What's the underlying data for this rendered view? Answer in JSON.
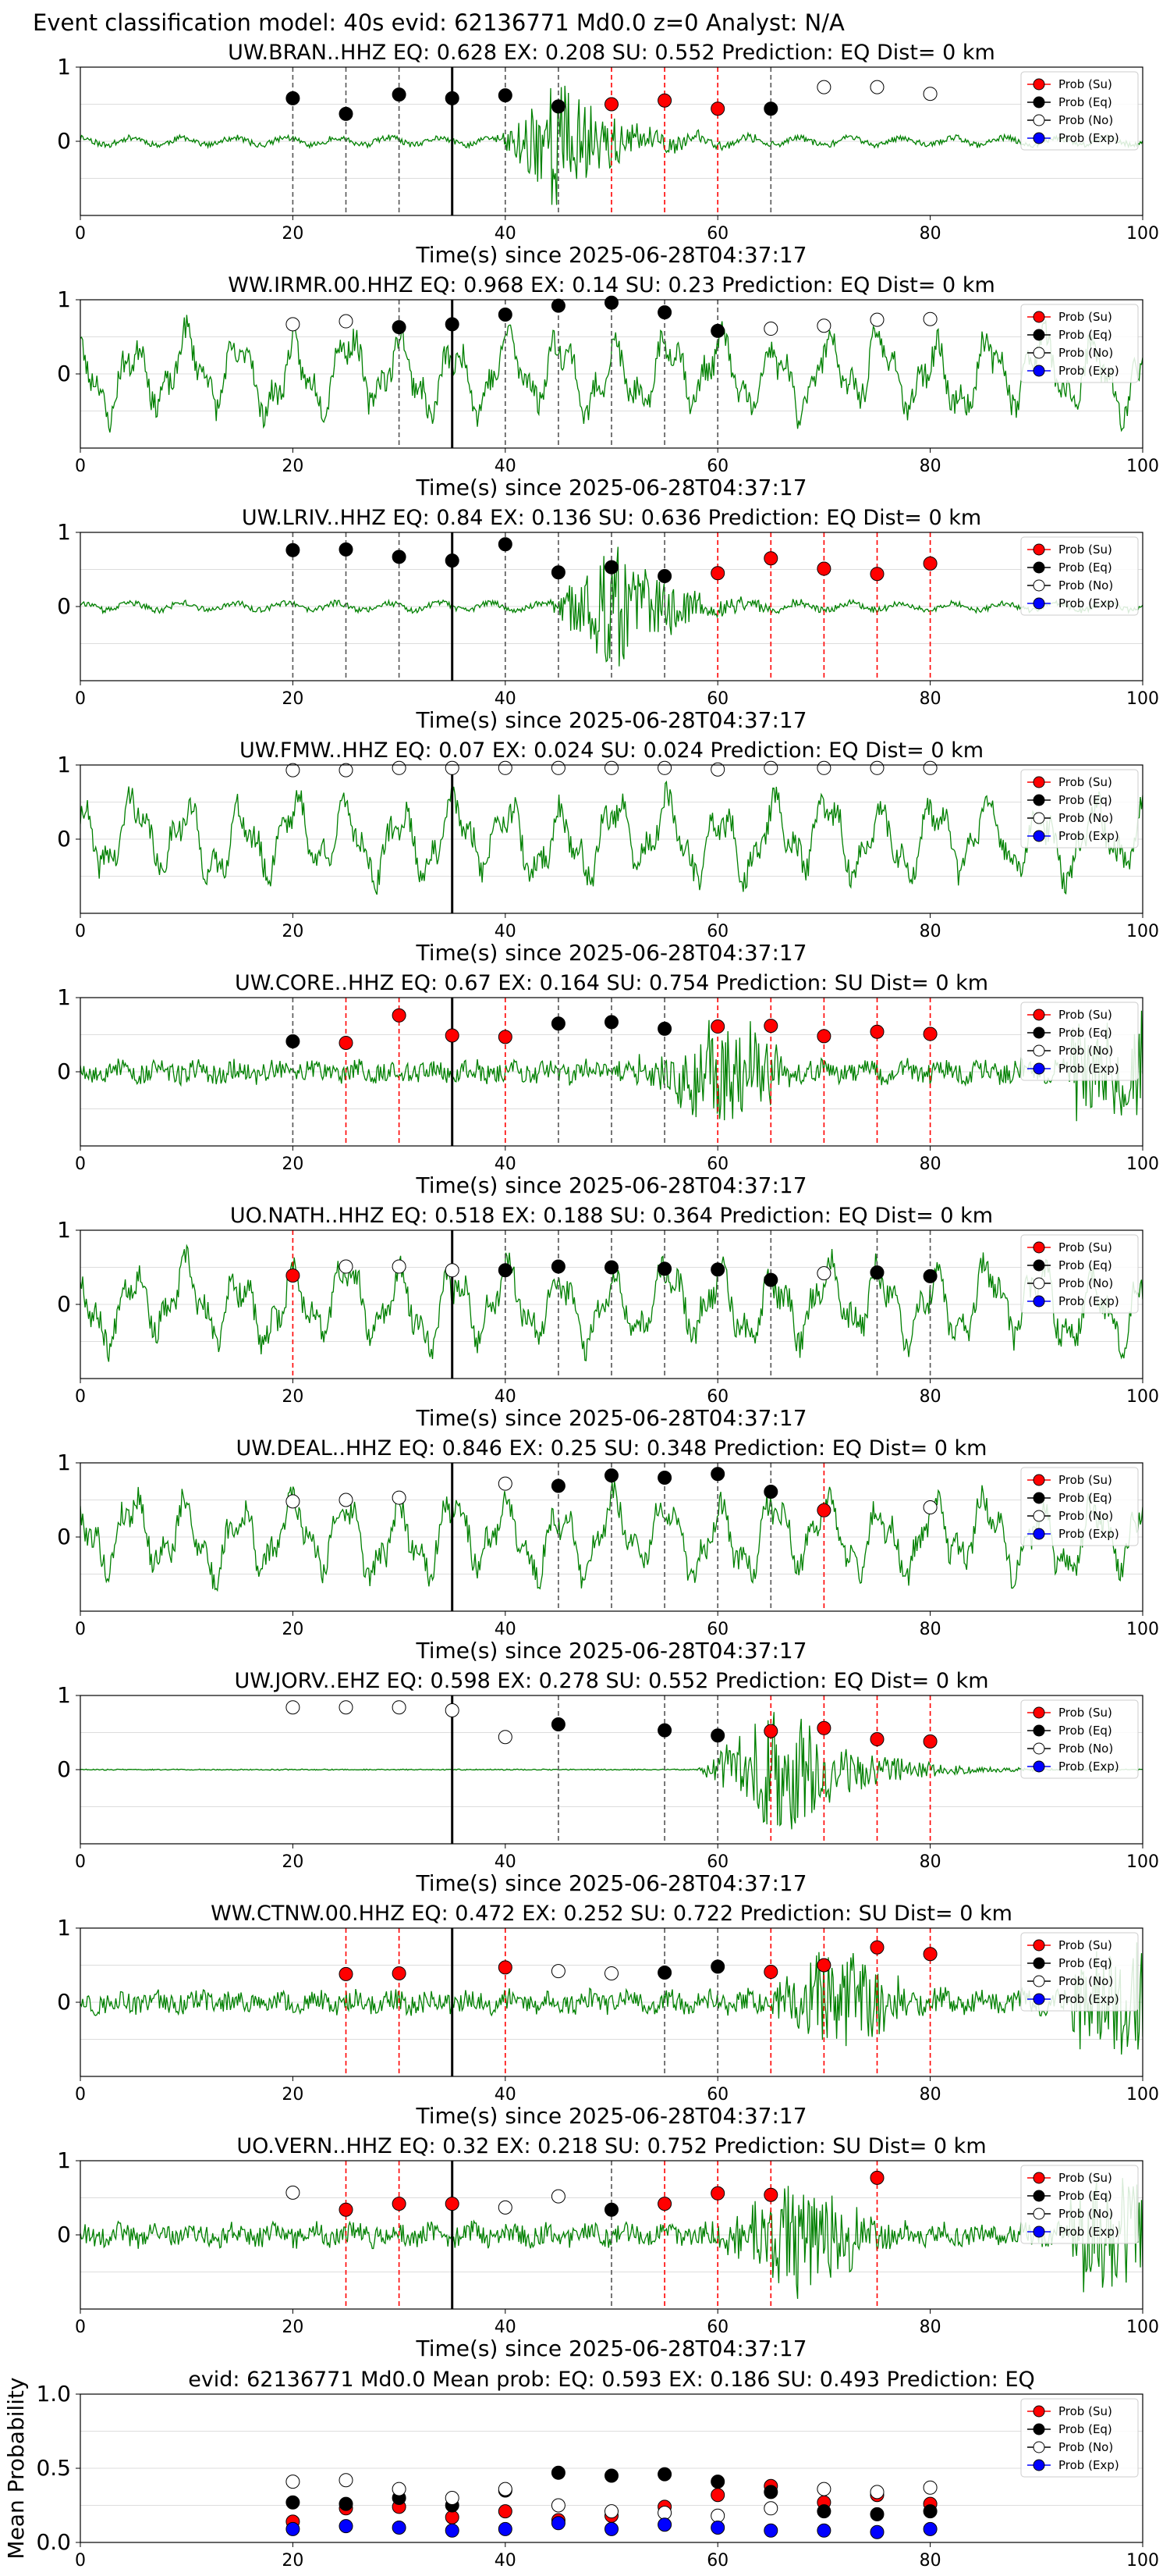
{
  "suptitle": "Event classification model: 40s evid: 62136771 Md0.0 z=0 Analyst: N/A",
  "colors": {
    "waveform": "#008000",
    "su": "#ff0000",
    "eq": "#000000",
    "no": "#ffffff",
    "exp": "#0000ff",
    "grid": "#dddddd",
    "pick_line": "#000000"
  },
  "legend": {
    "placement": "top-right",
    "entries": [
      "Prob (Su)",
      "Prob (Eq)",
      "Prob (No)",
      "Prob (Exp)"
    ]
  },
  "chart_data": [
    {
      "type": "line",
      "title": "UW.BRAN..HHZ   EQ: 0.628  EX: 0.208  SU: 0.552   Prediction: EQ    Dist= 0 km",
      "xlabel": "Time(s) since 2025-06-28T04:37:17",
      "xlim": [
        0,
        100
      ],
      "ylim": [
        -1,
        1
      ],
      "xticks": [
        0,
        20,
        40,
        60,
        80,
        100
      ],
      "yticks": [
        0,
        1
      ],
      "pick_time": 35,
      "grid": "horizontal",
      "waveform": {
        "style": "event",
        "peak_time": 45,
        "seed": 11
      },
      "points": [
        {
          "x": 20,
          "y": 0.58,
          "class": "eq"
        },
        {
          "x": 25,
          "y": 0.37,
          "class": "eq"
        },
        {
          "x": 30,
          "y": 0.63,
          "class": "eq"
        },
        {
          "x": 35,
          "y": 0.58,
          "class": "eq"
        },
        {
          "x": 40,
          "y": 0.62,
          "class": "eq"
        },
        {
          "x": 45,
          "y": 0.47,
          "class": "eq"
        },
        {
          "x": 50,
          "y": 0.5,
          "class": "su"
        },
        {
          "x": 55,
          "y": 0.55,
          "class": "su"
        },
        {
          "x": 60,
          "y": 0.44,
          "class": "su"
        },
        {
          "x": 65,
          "y": 0.44,
          "class": "eq"
        },
        {
          "x": 70,
          "y": 0.73,
          "class": "no"
        },
        {
          "x": 75,
          "y": 0.73,
          "class": "no"
        },
        {
          "x": 80,
          "y": 0.64,
          "class": "no"
        }
      ]
    },
    {
      "type": "line",
      "title": "WW.IRMR.00.HHZ   EQ: 0.968  EX: 0.14  SU: 0.23   Prediction: EQ    Dist= 0 km",
      "xlabel": "Time(s) since 2025-06-28T04:37:17",
      "xlim": [
        0,
        100
      ],
      "ylim": [
        -1,
        1
      ],
      "xticks": [
        0,
        20,
        40,
        60,
        80,
        100
      ],
      "yticks": [
        0,
        1
      ],
      "pick_time": 35,
      "grid": "horizontal",
      "waveform": {
        "style": "oscillating",
        "seed": 23
      },
      "points": [
        {
          "x": 20,
          "y": 0.67,
          "class": "no"
        },
        {
          "x": 25,
          "y": 0.71,
          "class": "no"
        },
        {
          "x": 30,
          "y": 0.63,
          "class": "eq"
        },
        {
          "x": 35,
          "y": 0.67,
          "class": "eq"
        },
        {
          "x": 40,
          "y": 0.8,
          "class": "eq"
        },
        {
          "x": 45,
          "y": 0.92,
          "class": "eq"
        },
        {
          "x": 50,
          "y": 0.96,
          "class": "eq"
        },
        {
          "x": 55,
          "y": 0.83,
          "class": "eq"
        },
        {
          "x": 60,
          "y": 0.58,
          "class": "eq"
        },
        {
          "x": 65,
          "y": 0.61,
          "class": "no"
        },
        {
          "x": 70,
          "y": 0.65,
          "class": "no"
        },
        {
          "x": 75,
          "y": 0.73,
          "class": "no"
        },
        {
          "x": 80,
          "y": 0.74,
          "class": "no"
        }
      ]
    },
    {
      "type": "line",
      "title": "UW.LRIV..HHZ   EQ: 0.84  EX: 0.136  SU: 0.636   Prediction: EQ    Dist= 0 km",
      "xlabel": "Time(s) since 2025-06-28T04:37:17",
      "xlim": [
        0,
        100
      ],
      "ylim": [
        -1,
        1
      ],
      "xticks": [
        0,
        20,
        40,
        60,
        80,
        100
      ],
      "yticks": [
        0,
        1
      ],
      "pick_time": 35,
      "grid": "horizontal",
      "waveform": {
        "style": "event",
        "peak_time": 50,
        "seed": 37
      },
      "points": [
        {
          "x": 20,
          "y": 0.76,
          "class": "eq"
        },
        {
          "x": 25,
          "y": 0.77,
          "class": "eq"
        },
        {
          "x": 30,
          "y": 0.67,
          "class": "eq"
        },
        {
          "x": 35,
          "y": 0.62,
          "class": "eq"
        },
        {
          "x": 40,
          "y": 0.84,
          "class": "eq"
        },
        {
          "x": 45,
          "y": 0.46,
          "class": "eq"
        },
        {
          "x": 50,
          "y": 0.53,
          "class": "eq"
        },
        {
          "x": 55,
          "y": 0.41,
          "class": "eq"
        },
        {
          "x": 60,
          "y": 0.45,
          "class": "su"
        },
        {
          "x": 65,
          "y": 0.65,
          "class": "su"
        },
        {
          "x": 70,
          "y": 0.51,
          "class": "su"
        },
        {
          "x": 75,
          "y": 0.44,
          "class": "su"
        },
        {
          "x": 80,
          "y": 0.58,
          "class": "su"
        }
      ]
    },
    {
      "type": "line",
      "title": "UW.FMW..HHZ   EQ: 0.07  EX: 0.024  SU: 0.024   Prediction: EQ    Dist= 0 km",
      "xlabel": "Time(s) since 2025-06-28T04:37:17",
      "xlim": [
        0,
        100
      ],
      "ylim": [
        -1,
        1
      ],
      "xticks": [
        0,
        20,
        40,
        60,
        80,
        100
      ],
      "yticks": [
        0,
        1
      ],
      "pick_time": 35,
      "grid": "horizontal",
      "waveform": {
        "style": "oscillating",
        "seed": 41
      },
      "points": [
        {
          "x": 20,
          "y": 0.93,
          "class": "no"
        },
        {
          "x": 25,
          "y": 0.93,
          "class": "no"
        },
        {
          "x": 30,
          "y": 0.96,
          "class": "no"
        },
        {
          "x": 35,
          "y": 0.96,
          "class": "no"
        },
        {
          "x": 40,
          "y": 0.96,
          "class": "no"
        },
        {
          "x": 45,
          "y": 0.96,
          "class": "no"
        },
        {
          "x": 50,
          "y": 0.96,
          "class": "no"
        },
        {
          "x": 55,
          "y": 0.96,
          "class": "no"
        },
        {
          "x": 60,
          "y": 0.94,
          "class": "no"
        },
        {
          "x": 65,
          "y": 0.96,
          "class": "no"
        },
        {
          "x": 70,
          "y": 0.96,
          "class": "no"
        },
        {
          "x": 75,
          "y": 0.96,
          "class": "no"
        },
        {
          "x": 80,
          "y": 0.96,
          "class": "no"
        }
      ]
    },
    {
      "type": "line",
      "title": "UW.CORE..HHZ   EQ: 0.67  EX: 0.164  SU: 0.754   Prediction: SU    Dist= 0 km",
      "xlabel": "Time(s) since 2025-06-28T04:37:17",
      "xlim": [
        0,
        100
      ],
      "ylim": [
        -1,
        1
      ],
      "xticks": [
        0,
        20,
        40,
        60,
        80,
        100
      ],
      "yticks": [
        0,
        1
      ],
      "pick_time": 35,
      "grid": "horizontal",
      "waveform": {
        "style": "noisy",
        "peak_time": 60,
        "seed": 53
      },
      "points": [
        {
          "x": 20,
          "y": 0.41,
          "class": "eq"
        },
        {
          "x": 25,
          "y": 0.39,
          "class": "su"
        },
        {
          "x": 30,
          "y": 0.76,
          "class": "su"
        },
        {
          "x": 35,
          "y": 0.49,
          "class": "su"
        },
        {
          "x": 40,
          "y": 0.47,
          "class": "su"
        },
        {
          "x": 45,
          "y": 0.65,
          "class": "eq"
        },
        {
          "x": 50,
          "y": 0.67,
          "class": "eq"
        },
        {
          "x": 55,
          "y": 0.58,
          "class": "eq"
        },
        {
          "x": 60,
          "y": 0.61,
          "class": "su"
        },
        {
          "x": 65,
          "y": 0.62,
          "class": "su"
        },
        {
          "x": 70,
          "y": 0.48,
          "class": "su"
        },
        {
          "x": 75,
          "y": 0.54,
          "class": "su"
        },
        {
          "x": 80,
          "y": 0.51,
          "class": "su"
        }
      ]
    },
    {
      "type": "line",
      "title": "UO.NATH..HHZ   EQ: 0.518  EX: 0.188  SU: 0.364   Prediction: EQ    Dist= 0 km",
      "xlabel": "Time(s) since 2025-06-28T04:37:17",
      "xlim": [
        0,
        100
      ],
      "ylim": [
        -1,
        1
      ],
      "xticks": [
        0,
        20,
        40,
        60,
        80,
        100
      ],
      "yticks": [
        0,
        1
      ],
      "pick_time": 35,
      "grid": "horizontal",
      "waveform": {
        "style": "oscillating",
        "seed": 67
      },
      "points": [
        {
          "x": 20,
          "y": 0.39,
          "class": "su"
        },
        {
          "x": 25,
          "y": 0.51,
          "class": "no"
        },
        {
          "x": 30,
          "y": 0.51,
          "class": "no"
        },
        {
          "x": 35,
          "y": 0.46,
          "class": "no"
        },
        {
          "x": 40,
          "y": 0.46,
          "class": "eq"
        },
        {
          "x": 45,
          "y": 0.51,
          "class": "eq"
        },
        {
          "x": 50,
          "y": 0.5,
          "class": "eq"
        },
        {
          "x": 55,
          "y": 0.48,
          "class": "eq"
        },
        {
          "x": 60,
          "y": 0.47,
          "class": "eq"
        },
        {
          "x": 65,
          "y": 0.33,
          "class": "eq"
        },
        {
          "x": 70,
          "y": 0.42,
          "class": "no"
        },
        {
          "x": 75,
          "y": 0.43,
          "class": "eq"
        },
        {
          "x": 80,
          "y": 0.38,
          "class": "eq"
        }
      ]
    },
    {
      "type": "line",
      "title": "UW.DEAL..HHZ   EQ: 0.846  EX: 0.25  SU: 0.348   Prediction: EQ    Dist= 0 km",
      "xlabel": "Time(s) since 2025-06-28T04:37:17",
      "xlim": [
        0,
        100
      ],
      "ylim": [
        -1,
        1
      ],
      "xticks": [
        0,
        20,
        40,
        60,
        80,
        100
      ],
      "yticks": [
        0,
        1
      ],
      "pick_time": 35,
      "grid": "horizontal",
      "waveform": {
        "style": "oscillating",
        "seed": 79
      },
      "points": [
        {
          "x": 20,
          "y": 0.48,
          "class": "no"
        },
        {
          "x": 25,
          "y": 0.5,
          "class": "no"
        },
        {
          "x": 30,
          "y": 0.53,
          "class": "no"
        },
        {
          "x": 40,
          "y": 0.72,
          "class": "no"
        },
        {
          "x": 45,
          "y": 0.69,
          "class": "eq"
        },
        {
          "x": 50,
          "y": 0.83,
          "class": "eq"
        },
        {
          "x": 55,
          "y": 0.8,
          "class": "eq"
        },
        {
          "x": 60,
          "y": 0.85,
          "class": "eq"
        },
        {
          "x": 65,
          "y": 0.61,
          "class": "eq"
        },
        {
          "x": 70,
          "y": 0.36,
          "class": "su"
        },
        {
          "x": 80,
          "y": 0.4,
          "class": "no"
        }
      ]
    },
    {
      "type": "line",
      "title": "UW.JORV..EHZ   EQ: 0.598  EX: 0.278  SU: 0.552   Prediction: EQ    Dist= 0 km",
      "xlabel": "Time(s) since 2025-06-28T04:37:17",
      "xlim": [
        0,
        100
      ],
      "ylim": [
        -1,
        1
      ],
      "xticks": [
        0,
        20,
        40,
        60,
        80,
        100
      ],
      "yticks": [
        0,
        1
      ],
      "pick_time": 35,
      "grid": "horizontal",
      "waveform": {
        "style": "quiet_event",
        "peak_time": 66,
        "seed": 83
      },
      "points": [
        {
          "x": 20,
          "y": 0.84,
          "class": "no"
        },
        {
          "x": 25,
          "y": 0.84,
          "class": "no"
        },
        {
          "x": 30,
          "y": 0.84,
          "class": "no"
        },
        {
          "x": 35,
          "y": 0.8,
          "class": "no"
        },
        {
          "x": 40,
          "y": 0.44,
          "class": "no"
        },
        {
          "x": 45,
          "y": 0.61,
          "class": "eq"
        },
        {
          "x": 55,
          "y": 0.53,
          "class": "eq"
        },
        {
          "x": 60,
          "y": 0.46,
          "class": "eq"
        },
        {
          "x": 65,
          "y": 0.52,
          "class": "su"
        },
        {
          "x": 70,
          "y": 0.56,
          "class": "su"
        },
        {
          "x": 75,
          "y": 0.41,
          "class": "su"
        },
        {
          "x": 80,
          "y": 0.38,
          "class": "su"
        }
      ]
    },
    {
      "type": "line",
      "title": "WW.CTNW.00.HHZ   EQ: 0.472  EX: 0.252  SU: 0.722   Prediction: SU    Dist= 0 km",
      "xlabel": "Time(s) since 2025-06-28T04:37:17",
      "xlim": [
        0,
        100
      ],
      "ylim": [
        -1,
        1
      ],
      "xticks": [
        0,
        20,
        40,
        60,
        80,
        100
      ],
      "yticks": [
        0,
        1
      ],
      "pick_time": 35,
      "grid": "horizontal",
      "waveform": {
        "style": "noisy",
        "peak_time": 72,
        "seed": 97
      },
      "points": [
        {
          "x": 25,
          "y": 0.38,
          "class": "su"
        },
        {
          "x": 30,
          "y": 0.39,
          "class": "su"
        },
        {
          "x": 40,
          "y": 0.47,
          "class": "su"
        },
        {
          "x": 45,
          "y": 0.42,
          "class": "no"
        },
        {
          "x": 50,
          "y": 0.39,
          "class": "no"
        },
        {
          "x": 55,
          "y": 0.4,
          "class": "eq"
        },
        {
          "x": 60,
          "y": 0.48,
          "class": "eq"
        },
        {
          "x": 65,
          "y": 0.41,
          "class": "su"
        },
        {
          "x": 70,
          "y": 0.5,
          "class": "su"
        },
        {
          "x": 75,
          "y": 0.74,
          "class": "su"
        },
        {
          "x": 80,
          "y": 0.65,
          "class": "su"
        }
      ]
    },
    {
      "type": "line",
      "title": "UO.VERN..HHZ   EQ: 0.32  EX: 0.218  SU: 0.752   Prediction: SU    Dist= 0 km",
      "xlabel": "Time(s) since 2025-06-28T04:37:17",
      "xlim": [
        0,
        100
      ],
      "ylim": [
        -1,
        1
      ],
      "xticks": [
        0,
        20,
        40,
        60,
        80,
        100
      ],
      "yticks": [
        0,
        1
      ],
      "pick_time": 35,
      "grid": "horizontal",
      "waveform": {
        "style": "noisy",
        "peak_time": 68,
        "seed": 101
      },
      "points": [
        {
          "x": 20,
          "y": 0.57,
          "class": "no"
        },
        {
          "x": 25,
          "y": 0.34,
          "class": "su"
        },
        {
          "x": 30,
          "y": 0.42,
          "class": "su"
        },
        {
          "x": 35,
          "y": 0.42,
          "class": "su"
        },
        {
          "x": 40,
          "y": 0.37,
          "class": "no"
        },
        {
          "x": 45,
          "y": 0.52,
          "class": "no"
        },
        {
          "x": 50,
          "y": 0.34,
          "class": "eq"
        },
        {
          "x": 55,
          "y": 0.42,
          "class": "su"
        },
        {
          "x": 60,
          "y": 0.56,
          "class": "su"
        },
        {
          "x": 65,
          "y": 0.54,
          "class": "su"
        },
        {
          "x": 75,
          "y": 0.77,
          "class": "su"
        }
      ]
    },
    {
      "type": "scatter",
      "title": "evid: 62136771  Md0.0   Mean prob:   EQ: 0.593  EX: 0.186  SU: 0.493   Prediction: EQ",
      "xlabel": "",
      "ylabel": "Mean Probability",
      "xlim": [
        0,
        100
      ],
      "ylim": [
        0,
        1
      ],
      "xticks": [
        0,
        20,
        40,
        60,
        80,
        100
      ],
      "yticks": [
        0.0,
        0.5,
        1.0
      ],
      "ytick_labels": [
        "0.0",
        "0.5",
        "1.0"
      ],
      "grid": "horizontal",
      "x": [
        20,
        25,
        30,
        35,
        40,
        45,
        50,
        55,
        60,
        65,
        70,
        75,
        80
      ],
      "series": [
        {
          "name": "Prob (Su)",
          "class": "su",
          "values": [
            0.14,
            0.23,
            0.24,
            0.17,
            0.21,
            0.15,
            0.18,
            0.24,
            0.32,
            0.38,
            0.27,
            0.32,
            0.26
          ]
        },
        {
          "name": "Prob (Eq)",
          "class": "eq",
          "values": [
            0.27,
            0.26,
            0.3,
            0.25,
            0.35,
            0.47,
            0.45,
            0.46,
            0.41,
            0.34,
            0.21,
            0.19,
            0.21
          ]
        },
        {
          "name": "Prob (No)",
          "class": "no",
          "values": [
            0.41,
            0.42,
            0.36,
            0.3,
            0.36,
            0.25,
            0.21,
            0.2,
            0.18,
            0.23,
            0.36,
            0.34,
            0.37
          ]
        },
        {
          "name": "Prob (Exp)",
          "class": "exp",
          "values": [
            0.09,
            0.11,
            0.1,
            0.08,
            0.09,
            0.13,
            0.09,
            0.12,
            0.1,
            0.08,
            0.08,
            0.07,
            0.09
          ]
        }
      ]
    }
  ]
}
